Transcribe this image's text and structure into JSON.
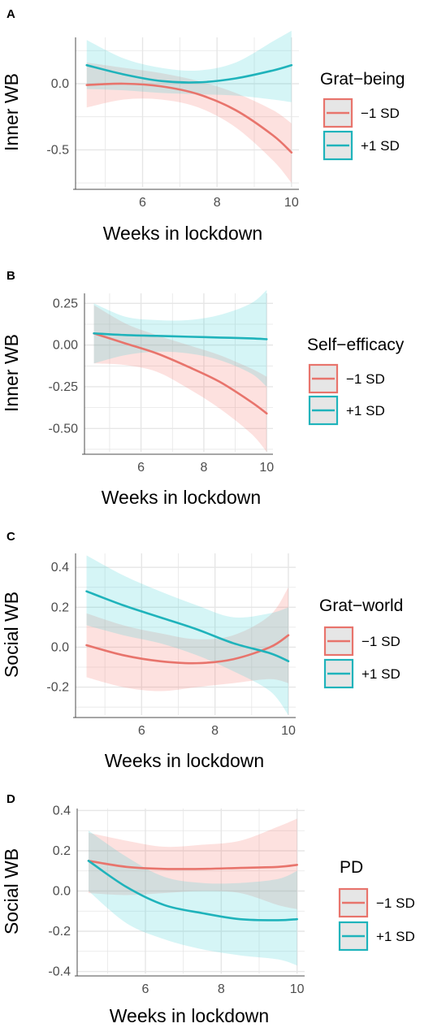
{
  "colors": {
    "series_minus": "#E8746C",
    "series_plus": "#1FB3BB",
    "band_minus": "#F8766D",
    "band_plus": "#3FD1D6",
    "grid": "#e6e6e6",
    "axis": "#4d4d4d",
    "legend_key_bg": "#e6e6e6"
  },
  "chart_data": [
    {
      "panel": "A",
      "type": "line",
      "xlabel": "Weeks in lockdown",
      "ylabel": "Inner WB",
      "xlim": [
        4.2,
        10.2
      ],
      "ylim": [
        -0.78,
        0.35
      ],
      "xticks": [
        6,
        8,
        10
      ],
      "yticks": [
        0.0,
        -0.5
      ],
      "ytick_labels": [
        "0.0",
        "-0.5"
      ],
      "grid": true,
      "legend_position": "right",
      "legend": {
        "title": "Grat−being",
        "labels": [
          "−1 SD",
          "+1 SD"
        ]
      },
      "series": [
        {
          "name": "−1 SD",
          "x": [
            4.5,
            5.5,
            6.5,
            7.5,
            8.5,
            9.5,
            10.0
          ],
          "y": [
            -0.01,
            0.0,
            -0.02,
            -0.08,
            -0.2,
            -0.39,
            -0.52
          ],
          "lower": [
            -0.18,
            -0.12,
            -0.12,
            -0.18,
            -0.33,
            -0.58,
            -0.75
          ],
          "upper": [
            0.16,
            0.12,
            0.08,
            0.02,
            -0.07,
            -0.2,
            -0.3
          ]
        },
        {
          "name": "+1 SD",
          "x": [
            4.5,
            5.5,
            6.5,
            7.5,
            8.5,
            9.5,
            10.0
          ],
          "y": [
            0.14,
            0.07,
            0.02,
            0.01,
            0.04,
            0.1,
            0.14
          ],
          "lower": [
            -0.04,
            -0.05,
            -0.07,
            -0.08,
            -0.09,
            -0.12,
            -0.14
          ],
          "upper": [
            0.33,
            0.19,
            0.12,
            0.1,
            0.16,
            0.32,
            0.4
          ]
        }
      ]
    },
    {
      "panel": "B",
      "type": "line",
      "xlabel": "Weeks in lockdown",
      "ylabel": "Inner WB",
      "xlim": [
        4.2,
        10.2
      ],
      "ylim": [
        -0.64,
        0.31
      ],
      "xticks": [
        6,
        8,
        10
      ],
      "yticks": [
        0.25,
        0.0,
        -0.25,
        -0.5
      ],
      "ytick_labels": [
        "0.25",
        "0.00",
        "-0.25",
        "-0.50"
      ],
      "grid": true,
      "legend_position": "right",
      "legend": {
        "title": "Self−efficacy",
        "labels": [
          "−1 SD",
          "+1 SD"
        ]
      },
      "series": [
        {
          "name": "−1 SD",
          "x": [
            4.5,
            5.5,
            6.5,
            7.5,
            8.5,
            9.5,
            10.0
          ],
          "y": [
            0.07,
            0.01,
            -0.05,
            -0.13,
            -0.22,
            -0.34,
            -0.41
          ],
          "lower": [
            -0.11,
            -0.12,
            -0.16,
            -0.26,
            -0.38,
            -0.53,
            -0.64
          ],
          "upper": [
            0.24,
            0.13,
            0.06,
            0.0,
            -0.06,
            -0.14,
            -0.19
          ]
        },
        {
          "name": "+1 SD",
          "x": [
            4.5,
            5.5,
            6.5,
            7.5,
            8.5,
            9.5,
            10.0
          ],
          "y": [
            0.07,
            0.06,
            0.055,
            0.05,
            0.045,
            0.04,
            0.035
          ],
          "lower": [
            -0.11,
            -0.06,
            -0.04,
            -0.05,
            -0.09,
            -0.17,
            -0.25
          ],
          "upper": [
            0.25,
            0.17,
            0.15,
            0.15,
            0.18,
            0.25,
            0.33
          ]
        }
      ]
    },
    {
      "panel": "C",
      "type": "line",
      "xlabel": "Weeks in lockdown",
      "ylabel": "Social WB",
      "xlim": [
        4.2,
        10.2
      ],
      "ylim": [
        -0.34,
        0.47
      ],
      "xticks": [
        6,
        8,
        10
      ],
      "yticks": [
        0.4,
        0.2,
        0.0,
        -0.2
      ],
      "ytick_labels": [
        "0.4",
        "0.2",
        "0.0",
        "-0.2"
      ],
      "grid": true,
      "legend_position": "right",
      "legend": {
        "title": "Grat−world",
        "labels": [
          "−1 SD",
          "+1 SD"
        ]
      },
      "series": [
        {
          "name": "−1 SD",
          "x": [
            4.5,
            5.5,
            6.5,
            7.5,
            8.5,
            9.5,
            10.0
          ],
          "y": [
            0.01,
            -0.04,
            -0.07,
            -0.08,
            -0.06,
            0.0,
            0.06
          ],
          "lower": [
            -0.15,
            -0.2,
            -0.22,
            -0.2,
            -0.18,
            -0.16,
            -0.18
          ],
          "upper": [
            0.17,
            0.11,
            0.07,
            0.04,
            0.06,
            0.16,
            0.3
          ]
        },
        {
          "name": "+1 SD",
          "x": [
            4.5,
            5.5,
            6.5,
            7.5,
            8.5,
            9.5,
            10.0
          ],
          "y": [
            0.28,
            0.21,
            0.15,
            0.09,
            0.02,
            -0.03,
            -0.07
          ],
          "lower": [
            0.11,
            0.06,
            0.02,
            -0.04,
            -0.12,
            -0.22,
            -0.34
          ],
          "upper": [
            0.46,
            0.36,
            0.28,
            0.21,
            0.15,
            0.17,
            0.2
          ]
        }
      ]
    },
    {
      "panel": "D",
      "type": "line",
      "xlabel": "Weeks in lockdown",
      "ylabel": "Social WB",
      "xlim": [
        4.2,
        10.2
      ],
      "ylim": [
        -0.41,
        0.41
      ],
      "xticks": [
        6,
        8,
        10
      ],
      "yticks": [
        0.4,
        0.2,
        0.0,
        -0.2,
        -0.4
      ],
      "ytick_labels": [
        "0.4",
        "0.2",
        "0.0",
        "-0.2",
        "-0.4"
      ],
      "grid": true,
      "legend_position": "right",
      "legend": {
        "title": "PD",
        "labels": [
          "−1 SD",
          "+1 SD"
        ]
      },
      "series": [
        {
          "name": "−1 SD",
          "x": [
            4.5,
            5.5,
            6.5,
            7.5,
            8.5,
            9.5,
            10.0
          ],
          "y": [
            0.15,
            0.12,
            0.11,
            0.11,
            0.115,
            0.12,
            0.13
          ],
          "lower": [
            -0.01,
            -0.02,
            -0.01,
            0.0,
            -0.01,
            -0.07,
            -0.09
          ],
          "upper": [
            0.29,
            0.25,
            0.22,
            0.23,
            0.25,
            0.32,
            0.36
          ]
        },
        {
          "name": "+1 SD",
          "x": [
            4.5,
            5.5,
            6.5,
            7.5,
            8.5,
            9.5,
            10.0
          ],
          "y": [
            0.15,
            0.02,
            -0.07,
            -0.11,
            -0.14,
            -0.145,
            -0.14
          ],
          "lower": [
            0.0,
            -0.16,
            -0.24,
            -0.29,
            -0.32,
            -0.34,
            -0.37
          ],
          "upper": [
            0.3,
            0.17,
            0.07,
            0.04,
            0.04,
            0.06,
            0.1
          ]
        }
      ]
    }
  ]
}
